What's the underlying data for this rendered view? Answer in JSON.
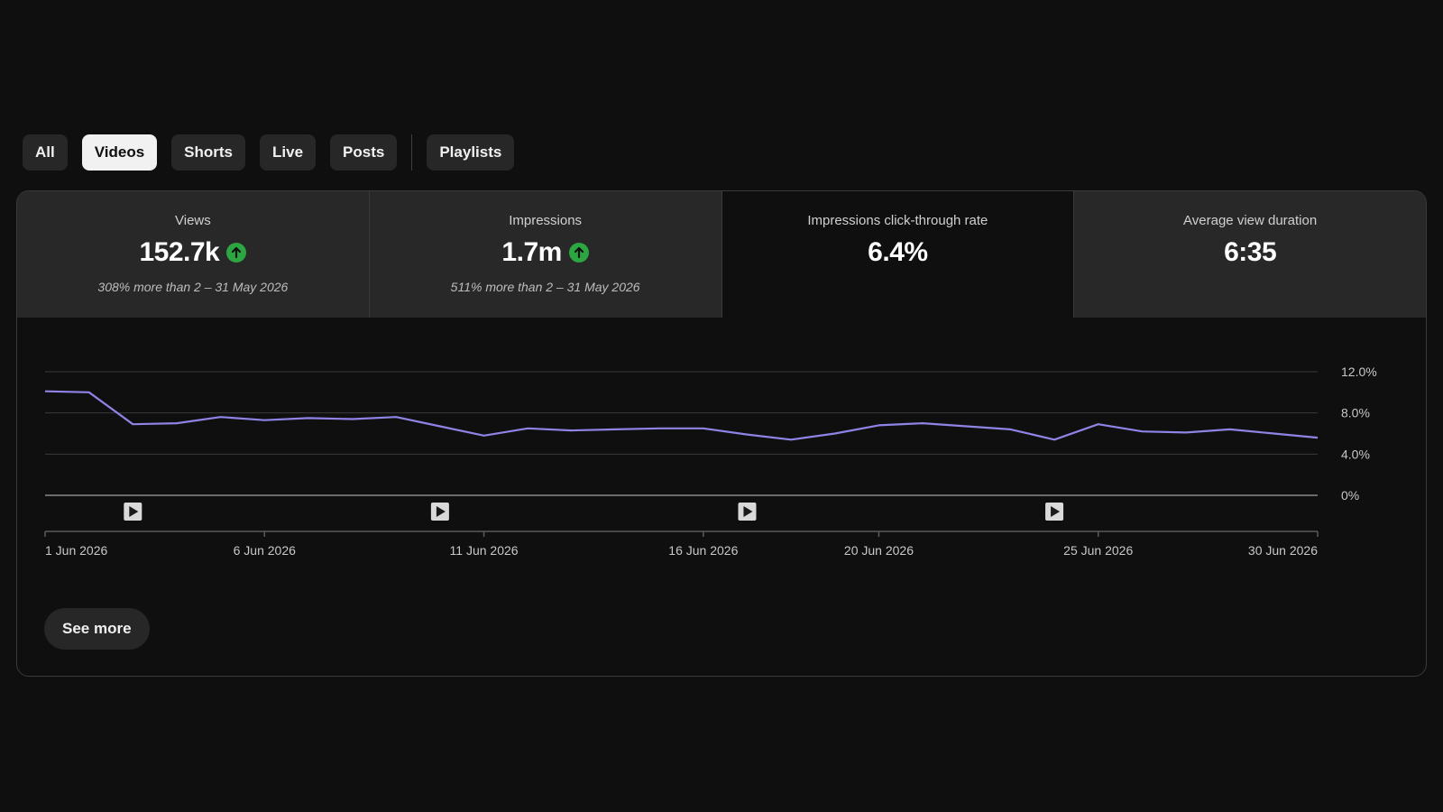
{
  "filters": {
    "chips": [
      {
        "label": "All",
        "selected": false
      },
      {
        "label": "Videos",
        "selected": true
      },
      {
        "label": "Shorts",
        "selected": false
      },
      {
        "label": "Live",
        "selected": false
      },
      {
        "label": "Posts",
        "selected": false
      }
    ],
    "playlists_label": "Playlists"
  },
  "metrics": [
    {
      "title": "Views",
      "value": "152.7k",
      "trend": "up",
      "comparison": "308% more than 2 – 31 May 2026",
      "active": false
    },
    {
      "title": "Impressions",
      "value": "1.7m",
      "trend": "up",
      "comparison": "511% more than 2 – 31 May 2026",
      "active": false
    },
    {
      "title": "Impressions click-through rate",
      "value": "6.4%",
      "trend": "",
      "comparison": "",
      "active": true
    },
    {
      "title": "Average view duration",
      "value": "6:35",
      "trend": "",
      "comparison": "",
      "active": false
    }
  ],
  "colors": {
    "line": "#8f84e6",
    "trend_up": "#2ba640",
    "gridline": "#3a3a3a",
    "axis": "#aaaaaa"
  },
  "chart_data": {
    "type": "line",
    "title": "",
    "xlabel": "",
    "ylabel": "",
    "x": [
      "1 Jun 2026",
      "2 Jun 2026",
      "3 Jun 2026",
      "4 Jun 2026",
      "5 Jun 2026",
      "6 Jun 2026",
      "7 Jun 2026",
      "8 Jun 2026",
      "9 Jun 2026",
      "10 Jun 2026",
      "11 Jun 2026",
      "12 Jun 2026",
      "13 Jun 2026",
      "14 Jun 2026",
      "15 Jun 2026",
      "16 Jun 2026",
      "17 Jun 2026",
      "18 Jun 2026",
      "19 Jun 2026",
      "20 Jun 2026",
      "21 Jun 2026",
      "22 Jun 2026",
      "23 Jun 2026",
      "24 Jun 2026",
      "25 Jun 2026",
      "26 Jun 2026",
      "27 Jun 2026",
      "28 Jun 2026",
      "29 Jun 2026",
      "30 Jun 2026"
    ],
    "series": [
      {
        "name": "",
        "values": [
          10.1,
          10.0,
          6.9,
          7.0,
          7.6,
          7.3,
          7.5,
          7.4,
          7.6,
          6.7,
          5.8,
          6.5,
          6.3,
          6.4,
          6.5,
          6.5,
          5.9,
          5.4,
          6.0,
          6.8,
          7.0,
          6.7,
          6.4,
          5.4,
          6.9,
          6.2,
          6.1,
          6.4,
          6.0,
          5.6
        ]
      }
    ],
    "y_ticks": [
      "12.0%",
      "8.0%",
      "4.0%",
      "0%"
    ],
    "y_tick_values": [
      12,
      8,
      4,
      0
    ],
    "ylim": [
      0,
      12
    ],
    "x_tick_labels": [
      {
        "date_index": 0,
        "label": "1 Jun 2026"
      },
      {
        "date_index": 5,
        "label": "6 Jun 2026"
      },
      {
        "date_index": 10,
        "label": "11 Jun 2026"
      },
      {
        "date_index": 15,
        "label": "16 Jun 2026"
      },
      {
        "date_index": 19,
        "label": "20 Jun 2026"
      },
      {
        "date_index": 24,
        "label": "25 Jun 2026"
      },
      {
        "date_index": 29,
        "label": "30 Jun 2026"
      }
    ],
    "video_markers": [
      2,
      9,
      16,
      23
    ],
    "grid": true
  },
  "see_more_label": "See more"
}
